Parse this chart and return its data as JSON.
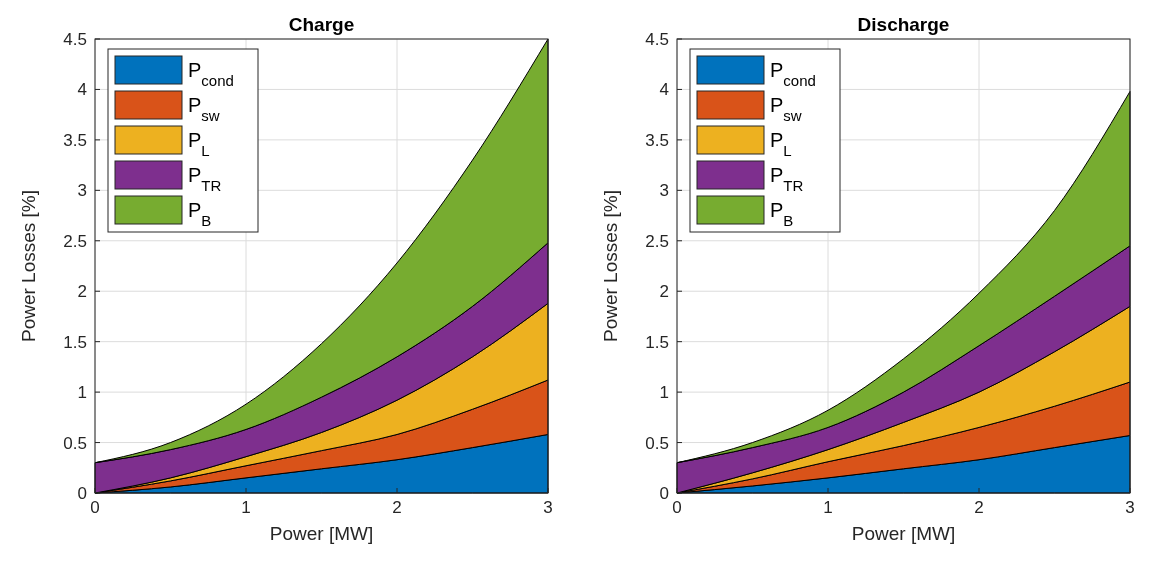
{
  "chart_data": [
    {
      "type": "area",
      "stacked": true,
      "title": "Charge",
      "xlabel": "Power [MW]",
      "ylabel": "Power Losses [%]",
      "x": [
        0,
        0.5,
        1,
        1.5,
        2,
        2.5,
        3
      ],
      "xlim": [
        0,
        3
      ],
      "xticks": [
        0,
        1,
        2,
        3
      ],
      "ylim": [
        0,
        4.5
      ],
      "yticks": [
        0,
        0.5,
        1,
        1.5,
        2,
        2.5,
        3,
        3.5,
        4,
        4.5
      ],
      "grid": true,
      "legend": "top left",
      "series": [
        {
          "name": "P$_{cond}$",
          "color": "#0072bd",
          "values": [
            0,
            0.06,
            0.15,
            0.24,
            0.33,
            0.45,
            0.58
          ]
        },
        {
          "name": "P$_{sw}$",
          "color": "#d95319",
          "values": [
            0,
            0.06,
            0.12,
            0.18,
            0.25,
            0.38,
            0.54
          ]
        },
        {
          "name": "P$_{L}$",
          "color": "#edb120",
          "values": [
            0,
            0.03,
            0.09,
            0.18,
            0.34,
            0.52,
            0.76
          ]
        },
        {
          "name": "P$_{TR}$",
          "color": "#7e2f8e",
          "values": [
            0.3,
            0.28,
            0.27,
            0.35,
            0.43,
            0.5,
            0.6
          ]
        },
        {
          "name": "P$_{B}$",
          "color": "#77ac30",
          "values": [
            0,
            0.07,
            0.25,
            0.53,
            0.93,
            1.45,
            2.02
          ]
        }
      ]
    },
    {
      "type": "area",
      "stacked": true,
      "title": "Discharge",
      "xlabel": "Power [MW]",
      "ylabel": "Power Losses [%]",
      "x": [
        0,
        0.5,
        1,
        1.5,
        2,
        2.5,
        3
      ],
      "xlim": [
        0,
        3
      ],
      "xticks": [
        0,
        1,
        2,
        3
      ],
      "ylim": [
        0,
        4.5
      ],
      "yticks": [
        0,
        0.5,
        1,
        1.5,
        2,
        2.5,
        3,
        3.5,
        4,
        4.5
      ],
      "grid": true,
      "legend": "top left",
      "series": [
        {
          "name": "P$_{cond}$",
          "color": "#0072bd",
          "values": [
            0,
            0.07,
            0.15,
            0.24,
            0.33,
            0.45,
            0.57
          ]
        },
        {
          "name": "P$_{sw}$",
          "color": "#d95319",
          "values": [
            0,
            0.07,
            0.16,
            0.23,
            0.32,
            0.41,
            0.53
          ]
        },
        {
          "name": "P$_{L}$",
          "color": "#edb120",
          "values": [
            0,
            0.06,
            0.12,
            0.23,
            0.35,
            0.54,
            0.75
          ]
        },
        {
          "name": "P$_{TR}$",
          "color": "#7e2f8e",
          "values": [
            0.3,
            0.25,
            0.22,
            0.3,
            0.46,
            0.55,
            0.6
          ]
        },
        {
          "name": "P$_{B}$",
          "color": "#77ac30",
          "values": [
            0,
            0.05,
            0.17,
            0.33,
            0.52,
            0.85,
            1.53
          ]
        }
      ]
    }
  ]
}
